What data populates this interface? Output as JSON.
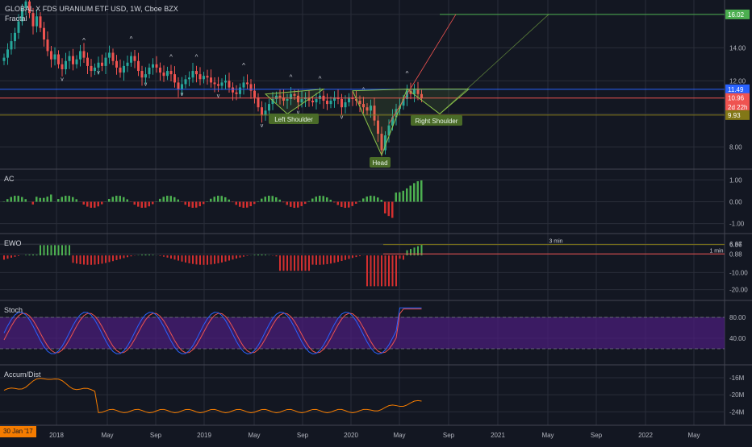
{
  "header": {
    "title": "GLOBAL X FDS URANIUM ETF USD, 1W, Cboe BZX",
    "indicator": "Fractal"
  },
  "panes": {
    "ac": "AC",
    "ewo": "EWO",
    "stoch": "Stoch",
    "ad": "Accum/Dist"
  },
  "colors": {
    "bg": "#131722",
    "up": "#26a69a",
    "down": "#ef5350",
    "grid": "#2a2e39",
    "stoch_band": "#4a1e7a",
    "k_line": "#2962ff",
    "d_line": "#ef5350",
    "ad_line": "#f57c00",
    "green_bar": "#4caf50",
    "red_bar": "#d32f2f",
    "pattern": "#8bc34a"
  },
  "time_axis": {
    "labels": [
      "2018",
      "May",
      "Sep",
      "2019",
      "May",
      "Sep",
      "2020",
      "May",
      "Sep",
      "2021",
      "May",
      "Sep",
      "2022",
      "May"
    ],
    "cursor_date": "30 Jan '17"
  },
  "chart_data": [
    {
      "type": "candlestick",
      "title": "GLOBAL X FDS URANIUM ETF USD, 1W, Cboe BZX",
      "ylim": [
        7.0,
        16.5
      ],
      "y_ticks": [
        "16.02",
        "14.00",
        "12.00",
        "10.00",
        "8.00"
      ],
      "price_labels": [
        {
          "value": 16.02,
          "text": "16.02",
          "color": "#4caf50"
        },
        {
          "value": 11.49,
          "text": "11.49",
          "color": "#2962ff"
        },
        {
          "value": 10.96,
          "text": "10.96",
          "color": "#ef5350"
        },
        {
          "value": 10.4,
          "text": "2d 22h",
          "color": "#ef5350"
        },
        {
          "value": 9.93,
          "text": "9.93",
          "color": "#827717"
        }
      ],
      "close_series": [
        13.4,
        13.9,
        14.4,
        14.9,
        15.6,
        16.4,
        16.8,
        16.1,
        15.3,
        15.9,
        15.2,
        14.5,
        13.8,
        13.3,
        13.6,
        13.0,
        12.7,
        13.2,
        13.5,
        13.0,
        13.3,
        13.8,
        13.4,
        12.9,
        12.6,
        12.8,
        13.1,
        12.9,
        13.4,
        13.7,
        13.2,
        12.8,
        12.5,
        12.9,
        13.1,
        13.5,
        13.2,
        12.6,
        12.2,
        12.4,
        12.8,
        13.0,
        12.8,
        12.5,
        12.3,
        12.6,
        12.4,
        11.9,
        11.5,
        11.8,
        12.1,
        12.2,
        12.6,
        12.4,
        12.1,
        12.3,
        12.2,
        11.9,
        11.8,
        11.7,
        11.9,
        12.0,
        11.6,
        11.3,
        11.2,
        11.6,
        11.9,
        11.8,
        11.4,
        11.0,
        10.4,
        9.9,
        10.2,
        10.6,
        10.9,
        11.1,
        11.0,
        10.8,
        10.9,
        11.2,
        11.1,
        10.7,
        10.9,
        11.0,
        10.8,
        10.7,
        10.9,
        11.1,
        10.8,
        10.6,
        10.8,
        11.0,
        10.9,
        10.4,
        10.7,
        11.0,
        10.9,
        10.8,
        10.6,
        10.4,
        10.2,
        10.5,
        9.6,
        8.8,
        7.8,
        8.7,
        9.3,
        9.8,
        10.3,
        10.5,
        10.9,
        11.4,
        11.2,
        11.5,
        11.2,
        10.96
      ],
      "fractals": [
        {
          "i": 6,
          "dir": "up"
        },
        {
          "i": 16,
          "dir": "down"
        },
        {
          "i": 22,
          "dir": "up"
        },
        {
          "i": 26,
          "dir": "down"
        },
        {
          "i": 35,
          "dir": "up"
        },
        {
          "i": 39,
          "dir": "down"
        },
        {
          "i": 46,
          "dir": "up"
        },
        {
          "i": 49,
          "dir": "down"
        },
        {
          "i": 53,
          "dir": "up"
        },
        {
          "i": 59,
          "dir": "down"
        },
        {
          "i": 66,
          "dir": "up"
        },
        {
          "i": 71,
          "dir": "down"
        },
        {
          "i": 79,
          "dir": "up"
        },
        {
          "i": 81,
          "dir": "down"
        },
        {
          "i": 87,
          "dir": "up"
        },
        {
          "i": 93,
          "dir": "down"
        },
        {
          "i": 99,
          "dir": "up"
        },
        {
          "i": 104,
          "dir": "down"
        },
        {
          "i": 111,
          "dir": "up"
        }
      ],
      "annotations": [
        "Left Shoulder",
        "Head",
        "Right Shoulder"
      ]
    },
    {
      "type": "bar",
      "title": "AC",
      "y_ticks": [
        "1.00",
        "0.00",
        "-1.00"
      ],
      "ylim": [
        -1.2,
        1.2
      ]
    },
    {
      "type": "bar",
      "title": "EWO",
      "y_ticks": [
        "6.67",
        "6.36",
        "0.88",
        "-10.00",
        "-20.00"
      ],
      "ylim": [
        -23,
        9
      ],
      "levels": [
        {
          "value": 6.36,
          "label": "3 min",
          "color": "#827717"
        },
        {
          "value": 0.88,
          "label": "1 min",
          "color": "#ef5350"
        }
      ]
    },
    {
      "type": "line",
      "title": "Stoch",
      "y_ticks": [
        "80.00",
        "40.00"
      ],
      "ylim": [
        0,
        100
      ],
      "band": [
        20,
        80
      ]
    },
    {
      "type": "line",
      "title": "Accum/Dist",
      "y_ticks": [
        "-16M",
        "-20M",
        "-24M"
      ],
      "ylim": [
        -26,
        -14.5
      ]
    }
  ]
}
